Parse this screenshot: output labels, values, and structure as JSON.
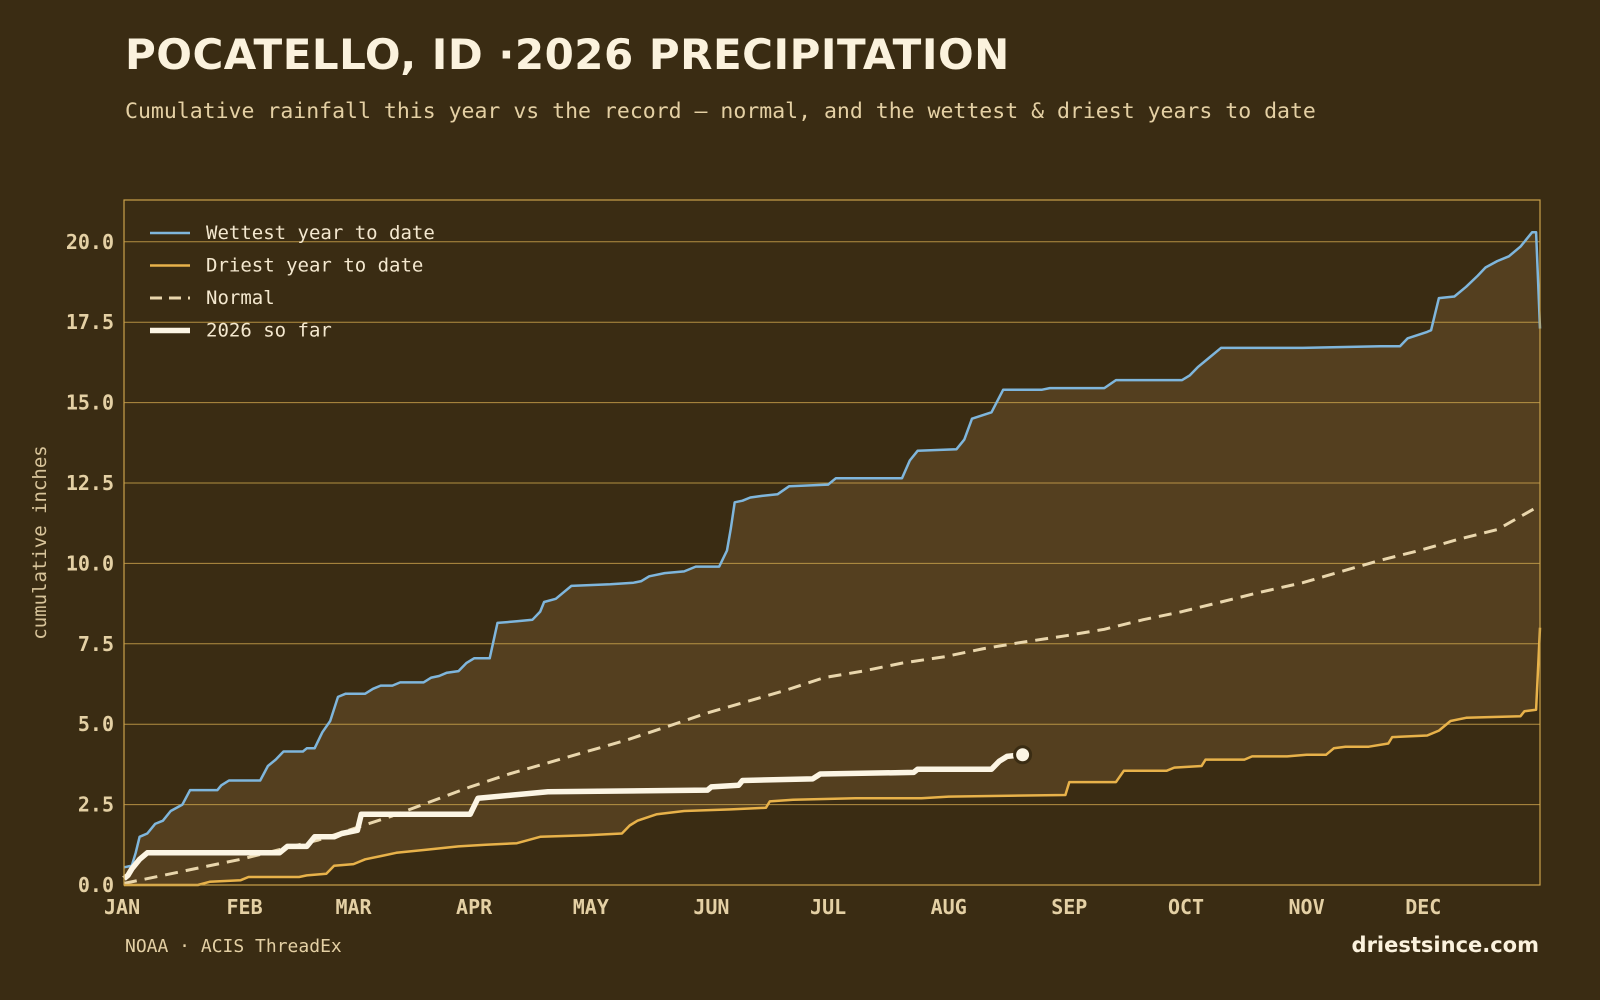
{
  "header": {
    "title": "POCATELLO, ID ·2026 PRECIPITATION",
    "subtitle": "Cumulative rainfall this year vs the record — normal, and the wettest & driest years to date"
  },
  "footer": {
    "source": "NOAA · ACIS ThreadEx",
    "brand": "driestsince.com"
  },
  "colors": {
    "background": "#3a2c13",
    "band_fill": "#543f1f",
    "frame": "#c9a14b",
    "wettest": "#7fb6dc",
    "driest": "#e8b24a",
    "normal": "#e9d6ac",
    "current": "#fcf5e4"
  },
  "chart_data": {
    "type": "line",
    "ylabel": "cumulative inches",
    "ylim": [
      0,
      21.3
    ],
    "yticks": [
      "0.0",
      "2.5",
      "5.0",
      "7.5",
      "10.0",
      "12.5",
      "15.0",
      "17.5",
      "20.0"
    ],
    "x_domain": [
      "Jan 1",
      "Dec 31"
    ],
    "month_labels": [
      "JAN",
      "FEB",
      "MAR",
      "APR",
      "MAY",
      "JUN",
      "JUL",
      "AUG",
      "SEP",
      "OCT",
      "NOV",
      "DEC"
    ],
    "grid": true,
    "legend_position": "top-left",
    "band": "shaded area between driest and wettest year to date",
    "series": [
      {
        "name": "Wettest year to date",
        "style": "solid",
        "color": "#7fb6dc",
        "points": [
          [
            "Jan 1",
            0.55
          ],
          [
            "Jan 3",
            0.6
          ],
          [
            "Jan 4",
            1.0
          ],
          [
            "Jan 5",
            1.5
          ],
          [
            "Jan 7",
            1.6
          ],
          [
            "Jan 9",
            1.9
          ],
          [
            "Jan 11",
            2.0
          ],
          [
            "Jan 13",
            2.3
          ],
          [
            "Jan 16",
            2.5
          ],
          [
            "Jan 18",
            2.95
          ],
          [
            "Jan 25",
            2.95
          ],
          [
            "Jan 26",
            3.1
          ],
          [
            "Jan 28",
            3.25
          ],
          [
            "Feb 5",
            3.25
          ],
          [
            "Feb 7",
            3.7
          ],
          [
            "Feb 9",
            3.9
          ],
          [
            "Feb 11",
            4.15
          ],
          [
            "Feb 16",
            4.15
          ],
          [
            "Feb 17",
            4.25
          ],
          [
            "Feb 19",
            4.25
          ],
          [
            "Feb 21",
            4.75
          ],
          [
            "Feb 23",
            5.1
          ],
          [
            "Feb 25",
            5.85
          ],
          [
            "Feb 27",
            5.95
          ],
          [
            "Mar 4",
            5.95
          ],
          [
            "Mar 6",
            6.1
          ],
          [
            "Mar 8",
            6.2
          ],
          [
            "Mar 11",
            6.2
          ],
          [
            "Mar 13",
            6.3
          ],
          [
            "Mar 19",
            6.3
          ],
          [
            "Mar 21",
            6.45
          ],
          [
            "Mar 23",
            6.5
          ],
          [
            "Mar 25",
            6.6
          ],
          [
            "Mar 28",
            6.65
          ],
          [
            "Mar 30",
            6.9
          ],
          [
            "Apr 1",
            7.05
          ],
          [
            "Apr 5",
            7.05
          ],
          [
            "Apr 7",
            8.15
          ],
          [
            "Apr 12",
            8.2
          ],
          [
            "Apr 16",
            8.25
          ],
          [
            "Apr 18",
            8.5
          ],
          [
            "Apr 19",
            8.8
          ],
          [
            "Apr 22",
            8.9
          ],
          [
            "Apr 24",
            9.1
          ],
          [
            "Apr 26",
            9.3
          ],
          [
            "May 6",
            9.35
          ],
          [
            "May 12",
            9.4
          ],
          [
            "May 14",
            9.45
          ],
          [
            "May 16",
            9.6
          ],
          [
            "May 20",
            9.7
          ],
          [
            "May 25",
            9.75
          ],
          [
            "May 28",
            9.9
          ],
          [
            "Jun 3",
            9.9
          ],
          [
            "Jun 5",
            10.4
          ],
          [
            "Jun 6",
            11.1
          ],
          [
            "Jun 7",
            11.9
          ],
          [
            "Jun 9",
            11.95
          ],
          [
            "Jun 11",
            12.05
          ],
          [
            "Jun 14",
            12.1
          ],
          [
            "Jun 18",
            12.15
          ],
          [
            "Jun 21",
            12.4
          ],
          [
            "Jul 1",
            12.45
          ],
          [
            "Jul 3",
            12.65
          ],
          [
            "Jul 20",
            12.65
          ],
          [
            "Jul 22",
            13.2
          ],
          [
            "Jul 24",
            13.5
          ],
          [
            "Aug 3",
            13.55
          ],
          [
            "Aug 5",
            13.85
          ],
          [
            "Aug 7",
            14.5
          ],
          [
            "Aug 12",
            14.7
          ],
          [
            "Aug 15",
            15.4
          ],
          [
            "Aug 25",
            15.4
          ],
          [
            "Aug 27",
            15.45
          ],
          [
            "Sep 10",
            15.45
          ],
          [
            "Sep 13",
            15.7
          ],
          [
            "Sep 30",
            15.7
          ],
          [
            "Oct 2",
            15.85
          ],
          [
            "Oct 4",
            16.1
          ],
          [
            "Oct 7",
            16.4
          ],
          [
            "Oct 10",
            16.7
          ],
          [
            "Oct 31",
            16.7
          ],
          [
            "Nov 20",
            16.75
          ],
          [
            "Nov 25",
            16.75
          ],
          [
            "Nov 27",
            17.0
          ],
          [
            "Dec 2",
            17.2
          ],
          [
            "Dec 3",
            17.25
          ],
          [
            "Dec 5",
            18.25
          ],
          [
            "Dec 9",
            18.3
          ],
          [
            "Dec 12",
            18.6
          ],
          [
            "Dec 15",
            18.95
          ],
          [
            "Dec 17",
            19.2
          ],
          [
            "Dec 20",
            19.4
          ],
          [
            "Dec 23",
            19.55
          ],
          [
            "Dec 26",
            19.85
          ],
          [
            "Dec 29",
            20.3
          ],
          [
            "Dec 30",
            20.3
          ],
          [
            "Dec 31",
            17.3
          ]
        ]
      },
      {
        "name": "Driest year to date",
        "style": "solid",
        "color": "#e8b24a",
        "points": [
          [
            "Jan 1",
            0.0
          ],
          [
            "Jan 20",
            0.0
          ],
          [
            "Jan 23",
            0.1
          ],
          [
            "Jan 31",
            0.15
          ],
          [
            "Feb 2",
            0.25
          ],
          [
            "Feb 15",
            0.25
          ],
          [
            "Feb 17",
            0.3
          ],
          [
            "Feb 22",
            0.35
          ],
          [
            "Feb 24",
            0.6
          ],
          [
            "Mar 1",
            0.65
          ],
          [
            "Mar 4",
            0.8
          ],
          [
            "Mar 8",
            0.9
          ],
          [
            "Mar 12",
            1.0
          ],
          [
            "Mar 20",
            1.1
          ],
          [
            "Mar 28",
            1.2
          ],
          [
            "Apr 4",
            1.25
          ],
          [
            "Apr 12",
            1.3
          ],
          [
            "Apr 18",
            1.5
          ],
          [
            "Apr 30",
            1.55
          ],
          [
            "May 9",
            1.6
          ],
          [
            "May 11",
            1.85
          ],
          [
            "May 13",
            2.0
          ],
          [
            "May 18",
            2.2
          ],
          [
            "May 25",
            2.3
          ],
          [
            "Jun 6",
            2.35
          ],
          [
            "Jun 15",
            2.4
          ],
          [
            "Jun 16",
            2.6
          ],
          [
            "Jun 22",
            2.65
          ],
          [
            "Jul 8",
            2.7
          ],
          [
            "Jul 25",
            2.7
          ],
          [
            "Aug 1",
            2.75
          ],
          [
            "Aug 31",
            2.8
          ],
          [
            "Sep 1",
            3.2
          ],
          [
            "Sep 13",
            3.2
          ],
          [
            "Sep 15",
            3.55
          ],
          [
            "Sep 26",
            3.55
          ],
          [
            "Sep 28",
            3.65
          ],
          [
            "Oct 5",
            3.7
          ],
          [
            "Oct 6",
            3.9
          ],
          [
            "Oct 16",
            3.9
          ],
          [
            "Oct 18",
            4.0
          ],
          [
            "Oct 27",
            4.0
          ],
          [
            "Nov 1",
            4.05
          ],
          [
            "Nov 6",
            4.05
          ],
          [
            "Nov 8",
            4.25
          ],
          [
            "Nov 11",
            4.3
          ],
          [
            "Nov 17",
            4.3
          ],
          [
            "Nov 22",
            4.4
          ],
          [
            "Nov 23",
            4.6
          ],
          [
            "Dec 2",
            4.65
          ],
          [
            "Dec 5",
            4.8
          ],
          [
            "Dec 8",
            5.1
          ],
          [
            "Dec 12",
            5.2
          ],
          [
            "Dec 26",
            5.25
          ],
          [
            "Dec 27",
            5.4
          ],
          [
            "Dec 30",
            5.45
          ],
          [
            "Dec 31",
            8.0
          ]
        ]
      },
      {
        "name": "Normal",
        "style": "dashed",
        "color": "#e9d6ac",
        "points": [
          [
            "Jan 1",
            0.05
          ],
          [
            "Jan 11",
            0.3
          ],
          [
            "Jan 21",
            0.55
          ],
          [
            "Jan 31",
            0.8
          ],
          [
            "Feb 10",
            1.1
          ],
          [
            "Feb 20",
            1.4
          ],
          [
            "Mar 1",
            1.75
          ],
          [
            "Mar 11",
            2.15
          ],
          [
            "Mar 21",
            2.6
          ],
          [
            "Mar 31",
            3.05
          ],
          [
            "Apr 10",
            3.45
          ],
          [
            "Apr 20",
            3.8
          ],
          [
            "Apr 30",
            4.15
          ],
          [
            "May 10",
            4.5
          ],
          [
            "May 20",
            4.9
          ],
          [
            "May 31",
            5.35
          ],
          [
            "Jun 10",
            5.7
          ],
          [
            "Jun 20",
            6.05
          ],
          [
            "Jun 30",
            6.45
          ],
          [
            "Jul 10",
            6.65
          ],
          [
            "Jul 20",
            6.9
          ],
          [
            "Jul 31",
            7.1
          ],
          [
            "Aug 10",
            7.35
          ],
          [
            "Aug 20",
            7.55
          ],
          [
            "Aug 31",
            7.75
          ],
          [
            "Sep 10",
            7.95
          ],
          [
            "Sep 20",
            8.25
          ],
          [
            "Sep 30",
            8.5
          ],
          [
            "Oct 10",
            8.8
          ],
          [
            "Oct 20",
            9.1
          ],
          [
            "Oct 31",
            9.4
          ],
          [
            "Nov 10",
            9.75
          ],
          [
            "Nov 20",
            10.1
          ],
          [
            "Nov 30",
            10.4
          ],
          [
            "Dec 10",
            10.75
          ],
          [
            "Dec 20",
            11.05
          ],
          [
            "Dec 31",
            11.8
          ]
        ]
      },
      {
        "name": "2026 so far",
        "style": "bold",
        "color": "#fcf5e4",
        "end_marker": true,
        "points": [
          [
            "Jan 1",
            0.2
          ],
          [
            "Jan 2",
            0.3
          ],
          [
            "Jan 3",
            0.5
          ],
          [
            "Jan 5",
            0.8
          ],
          [
            "Jan 7",
            1.0
          ],
          [
            "Jan 20",
            1.0
          ],
          [
            "Feb 10",
            1.0
          ],
          [
            "Feb 12",
            1.2
          ],
          [
            "Feb 17",
            1.2
          ],
          [
            "Feb 19",
            1.5
          ],
          [
            "Feb 24",
            1.5
          ],
          [
            "Feb 26",
            1.6
          ],
          [
            "Mar 2",
            1.7
          ],
          [
            "Mar 3",
            2.2
          ],
          [
            "Mar 31",
            2.2
          ],
          [
            "Apr 2",
            2.7
          ],
          [
            "Apr 11",
            2.8
          ],
          [
            "Apr 20",
            2.9
          ],
          [
            "May 31",
            2.95
          ],
          [
            "Jun 1",
            3.05
          ],
          [
            "Jun 8",
            3.1
          ],
          [
            "Jun 9",
            3.25
          ],
          [
            "Jun 27",
            3.3
          ],
          [
            "Jun 29",
            3.45
          ],
          [
            "Jul 23",
            3.5
          ],
          [
            "Jul 24",
            3.6
          ],
          [
            "Aug 12",
            3.6
          ],
          [
            "Aug 14",
            3.85
          ],
          [
            "Aug 16",
            4.0
          ],
          [
            "Aug 20",
            4.05
          ]
        ]
      }
    ]
  }
}
